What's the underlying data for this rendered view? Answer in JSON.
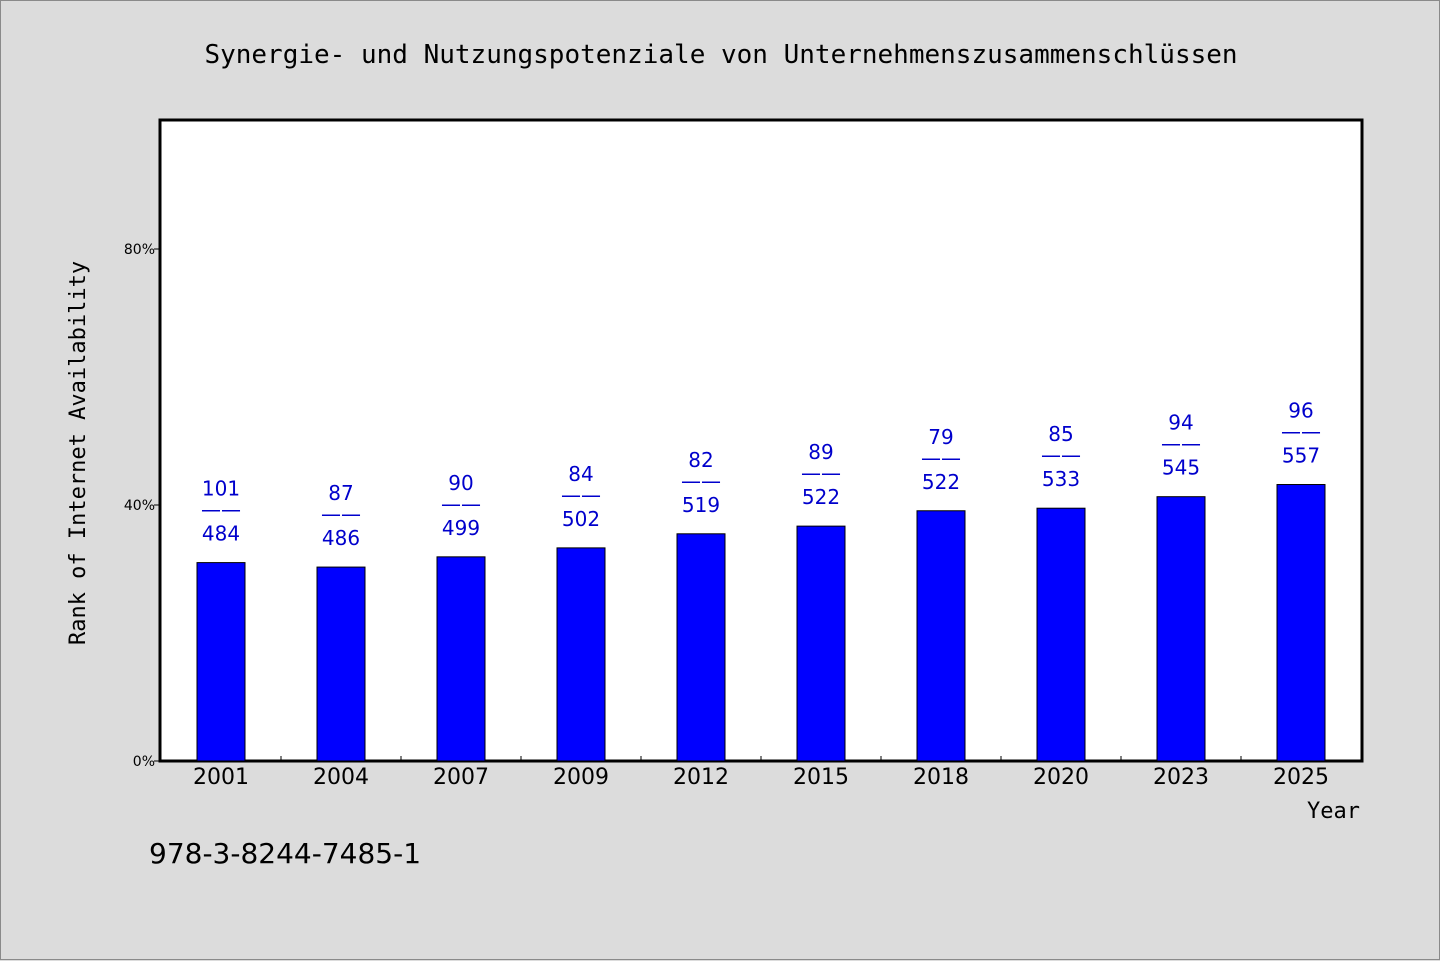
{
  "chart_data": {
    "type": "bar",
    "title": "Synergie- und Nutzungspotenziale von Unternehmenszusammenschlüssen",
    "xlabel": "Year",
    "ylabel": "Rank of Internet Availability",
    "categories": [
      "2001",
      "2004",
      "2007",
      "2009",
      "2012",
      "2015",
      "2018",
      "2020",
      "2023",
      "2025"
    ],
    "values": [
      31,
      30.3,
      31.9,
      33.3,
      35.5,
      36.7,
      39.1,
      39.5,
      41.3,
      43.2
    ],
    "label_top": [
      "101",
      "87",
      "90",
      "84",
      "82",
      "89",
      "79",
      "85",
      "94",
      "96"
    ],
    "label_bottom": [
      "484",
      "486",
      "499",
      "502",
      "519",
      "522",
      "522",
      "533",
      "545",
      "557"
    ],
    "label_separator": "——",
    "ylim": [
      0,
      100
    ],
    "yticks": [
      {
        "value": 0,
        "label": "0%"
      },
      {
        "value": 40,
        "label": "40%"
      },
      {
        "value": 80,
        "label": "80%"
      }
    ],
    "grid": false,
    "legend": "none",
    "colors": {
      "bar": "#0000ff",
      "label": "#0000cc",
      "plot_background": "#ffffff",
      "page_background": "#dcdcdc"
    }
  },
  "footnote": "978-3-8244-7485-1"
}
